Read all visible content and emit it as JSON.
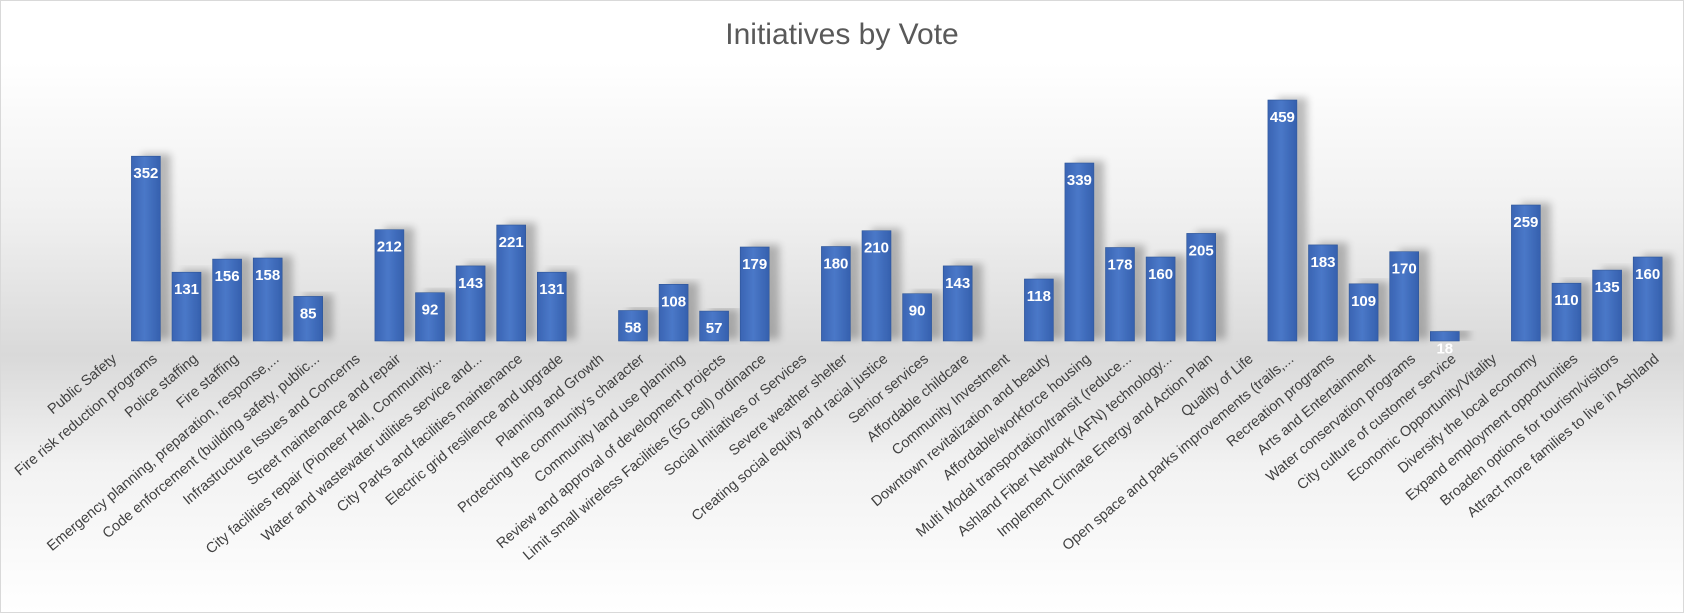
{
  "chart_data": {
    "type": "bar",
    "title": "Initiatives by Vote",
    "xlabel": "",
    "ylabel": "",
    "ylim": [
      0,
      500
    ],
    "grid": false,
    "legend": "none",
    "bar_color": "#4472C4",
    "categories": [
      "Public Safety",
      "Fire risk reduction programs",
      "Police staffing",
      "Fire staffing",
      "Emergency planning, preparation, response,...",
      "Code enforcement (building safety, public...",
      "Infrastructure Issues and Concerns",
      "Street maintenance and repair",
      "City facilities repair (Pioneer Hall, Community...",
      "Water and wastewater utilities service and...",
      "City Parks and facilities maintenance",
      "Electric grid resilience and upgrade",
      "Planning and Growth",
      "Protecting the community's character",
      "Community land use planning",
      "Review and approval of development projects",
      "Limit small wireless Facilities (5G cell) ordinance",
      "Social Initiatives or Services",
      "Severe weather shelter",
      "Creating social equity and racial justice",
      "Senior services",
      "Affordable childcare",
      "Community Investment",
      "Downtown revitalization and beauty",
      "Affordable/workforce housing",
      "Multi Modal transportation/transit (reduce...",
      "Ashland Fiber Network (AFN) technology...",
      "Implement Climate Energy and Action Plan",
      "Quality of Life",
      "Open space and parks improvements (trails,...",
      "Recreation programs",
      "Arts and Entertainment",
      "Water conservation programs",
      "City culture of customer service",
      "Economic Opportunity/Vitality",
      "Diversify the local economy",
      "Expand employment opportunities",
      "Broaden options for tourism/visitors",
      "Attract more families to live in Ashland"
    ],
    "values": [
      null,
      352,
      131,
      156,
      158,
      85,
      null,
      212,
      92,
      143,
      221,
      131,
      null,
      58,
      108,
      57,
      179,
      null,
      180,
      210,
      90,
      143,
      null,
      118,
      339,
      178,
      160,
      205,
      null,
      459,
      183,
      109,
      170,
      18,
      null,
      259,
      110,
      135,
      160
    ],
    "data_labels": [
      "",
      "352",
      "131",
      "156",
      "158",
      "85",
      "",
      "212",
      "92",
      "143",
      "221",
      "131",
      "",
      "58",
      "108",
      "57",
      "179",
      "",
      "180",
      "210",
      "90",
      "143",
      "",
      "118",
      "339",
      "178",
      "160",
      "205",
      "",
      "459",
      "183",
      "109",
      "170",
      "18",
      "",
      "259",
      "110",
      "135",
      "160"
    ]
  }
}
